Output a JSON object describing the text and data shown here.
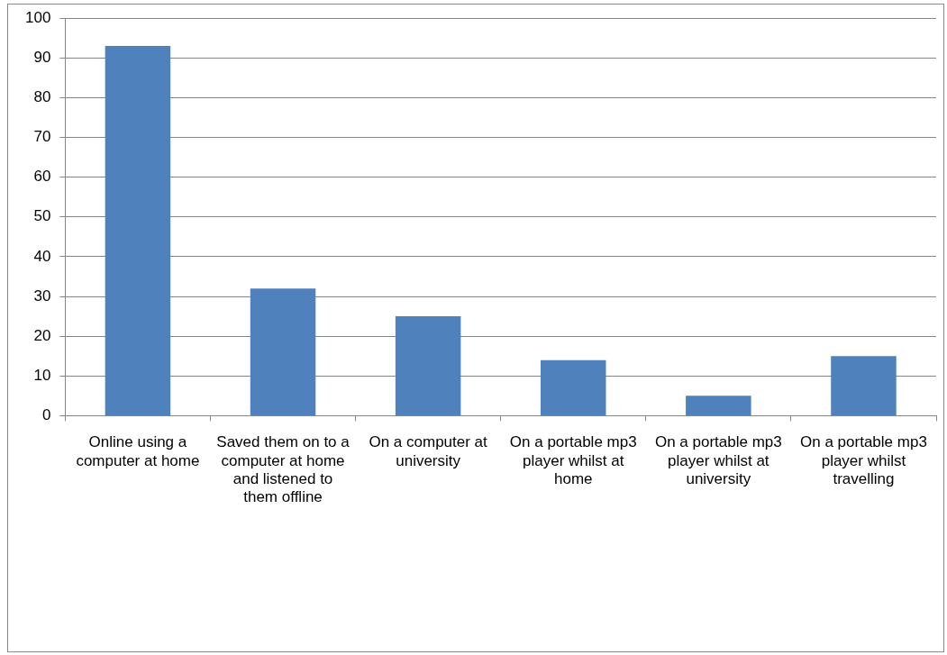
{
  "chart_data": {
    "type": "bar",
    "categories": [
      "Online using a computer at home",
      "Saved them on to a computer at home and listened to them offline",
      "On a computer at university",
      "On a portable mp3 player whilst at home",
      "On a portable mp3 player whilst at university",
      "On a portable mp3 player whilst travelling"
    ],
    "values": [
      93,
      32,
      25,
      14,
      5,
      15
    ],
    "color": "#4f81bd",
    "ylim": [
      0,
      100
    ],
    "yticks": [
      0,
      10,
      20,
      30,
      40,
      50,
      60,
      70,
      80,
      90,
      100
    ],
    "grid": "y"
  }
}
